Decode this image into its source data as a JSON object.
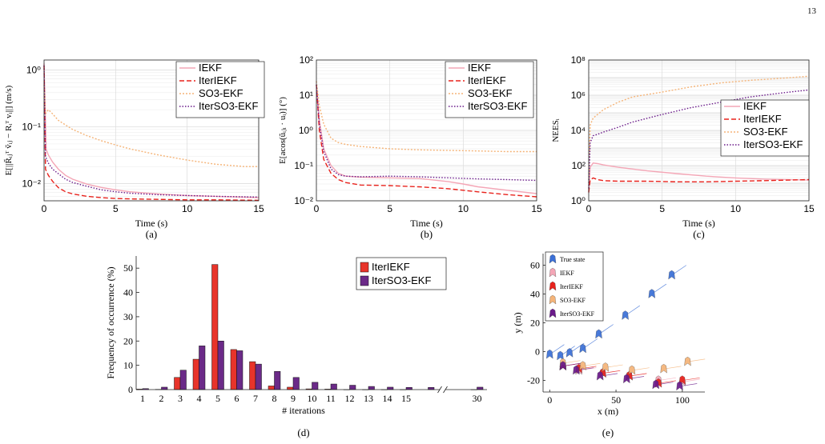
{
  "page_number": "13",
  "colors": {
    "iekf": "#f4a6b6",
    "iteriekf": "#e8221c",
    "so3ekf": "#f5b478",
    "iterso3ekf": "#6a1a8a",
    "true_state": "#3a6fd6",
    "bar_iteriekf": "#e8342a",
    "bar_iterso3ekf": "#6b2a88"
  },
  "chart_data": [
    {
      "id": "a",
      "caption": "(a)",
      "type": "line",
      "xlabel": "Time (s)",
      "ylabel": "E[||R̃ᵢⱼᵀ ṽᵢⱼ − Rᵢᵀ vᵢ||] (m/s)",
      "xlim": [
        0,
        15
      ],
      "ylim": [
        0.005,
        1.5
      ],
      "yscale": "log",
      "xticks": [
        "0",
        "5",
        "10",
        "15"
      ],
      "yticks": [
        {
          "v": 0.01,
          "label": "10⁻²"
        },
        {
          "v": 0.1,
          "label": "10⁻¹"
        },
        {
          "v": 1,
          "label": "10⁰"
        }
      ],
      "grid": true,
      "legend_position": "top-right",
      "series": [
        {
          "name": "IEKF",
          "color": "#f4a6b6",
          "dash": "",
          "x": [
            0,
            0.15,
            0.3,
            0.6,
            1,
            1.5,
            2,
            3,
            4,
            5,
            6,
            8,
            10,
            12,
            15
          ],
          "y": [
            1.3,
            0.04,
            0.032,
            0.024,
            0.018,
            0.014,
            0.012,
            0.0098,
            0.0086,
            0.0078,
            0.0072,
            0.0066,
            0.0062,
            0.006,
            0.0057
          ]
        },
        {
          "name": "IterIEKF",
          "color": "#e8221c",
          "dash": "6,3",
          "x": [
            0,
            0.1,
            0.3,
            0.6,
            1,
            1.5,
            2,
            3,
            4,
            5,
            6,
            8,
            10,
            12,
            15
          ],
          "y": [
            1.2,
            0.018,
            0.014,
            0.011,
            0.0085,
            0.0072,
            0.0066,
            0.006,
            0.0057,
            0.0055,
            0.0054,
            0.0053,
            0.0052,
            0.0052,
            0.0051
          ]
        },
        {
          "name": "SO3-EKF",
          "color": "#f5b478",
          "dash": "2,2",
          "x": [
            0,
            0.1,
            0.3,
            0.5,
            1,
            2,
            3,
            4,
            5,
            6,
            8,
            10,
            12,
            14,
            15
          ],
          "y": [
            0.55,
            0.17,
            0.2,
            0.18,
            0.13,
            0.09,
            0.07,
            0.057,
            0.048,
            0.041,
            0.032,
            0.026,
            0.022,
            0.02,
            0.02
          ]
        },
        {
          "name": "IterSO3-EKF",
          "color": "#6a1a8a",
          "dash": "1.5,2",
          "x": [
            0,
            0.1,
            0.3,
            0.6,
            1,
            1.5,
            2,
            3,
            4,
            5,
            6,
            8,
            10,
            12,
            15
          ],
          "y": [
            1.2,
            0.03,
            0.023,
            0.018,
            0.015,
            0.012,
            0.0105,
            0.009,
            0.0078,
            0.0072,
            0.0068,
            0.0064,
            0.0062,
            0.006,
            0.0058
          ]
        }
      ]
    },
    {
      "id": "b",
      "caption": "(b)",
      "type": "line",
      "xlabel": "Time (s)",
      "ylabel": "E[acos(ũᵢⱼᵢ · uᵢ)] (°)",
      "xlim": [
        0,
        15
      ],
      "ylim": [
        0.01,
        100
      ],
      "yscale": "log",
      "xticks": [
        "0",
        "5",
        "10",
        "15"
      ],
      "yticks": [
        {
          "v": 0.01,
          "label": "10⁻²"
        },
        {
          "v": 0.1,
          "label": "10⁻¹"
        },
        {
          "v": 1,
          "label": "10⁰"
        },
        {
          "v": 10,
          "label": "10¹"
        },
        {
          "v": 100,
          "label": "10²"
        }
      ],
      "grid": true,
      "legend_position": "top-right",
      "series": [
        {
          "name": "IEKF",
          "color": "#f4a6b6",
          "dash": "",
          "x": [
            0,
            0.2,
            0.5,
            1,
            1.5,
            2,
            3,
            5,
            7,
            9,
            10,
            11,
            13,
            15
          ],
          "y": [
            20,
            2,
            0.3,
            0.1,
            0.06,
            0.05,
            0.047,
            0.045,
            0.043,
            0.035,
            0.03,
            0.025,
            0.02,
            0.016
          ]
        },
        {
          "name": "IterIEKF",
          "color": "#e8221c",
          "dash": "6,3",
          "x": [
            0,
            0.2,
            0.5,
            1,
            1.5,
            2,
            3,
            5,
            7,
            9,
            11,
            13,
            15
          ],
          "y": [
            20,
            1,
            0.15,
            0.06,
            0.04,
            0.033,
            0.028,
            0.027,
            0.025,
            0.022,
            0.018,
            0.015,
            0.013
          ]
        },
        {
          "name": "SO3-EKF",
          "color": "#f5b478",
          "dash": "2,2",
          "x": [
            0,
            0.2,
            0.5,
            1,
            1.5,
            2,
            3,
            5,
            7,
            9,
            11,
            13,
            15
          ],
          "y": [
            25,
            5,
            1.5,
            0.6,
            0.45,
            0.4,
            0.35,
            0.3,
            0.28,
            0.27,
            0.26,
            0.25,
            0.25
          ]
        },
        {
          "name": "IterSO3-EKF",
          "color": "#6a1a8a",
          "dash": "1.5,2",
          "x": [
            0,
            0.2,
            0.5,
            1,
            1.5,
            2,
            3,
            5,
            7,
            9,
            11,
            13,
            15
          ],
          "y": [
            20,
            1.5,
            0.25,
            0.08,
            0.055,
            0.05,
            0.048,
            0.05,
            0.048,
            0.045,
            0.042,
            0.04,
            0.038
          ]
        }
      ]
    },
    {
      "id": "c",
      "caption": "(c)",
      "type": "line",
      "xlabel": "Time (s)",
      "ylabel": "NEESᵢ",
      "xlim": [
        0,
        15
      ],
      "ylim": [
        1,
        100000000
      ],
      "yscale": "log",
      "xticks": [
        "0",
        "5",
        "10",
        "15"
      ],
      "yticks": [
        {
          "v": 1,
          "label": "10⁰"
        },
        {
          "v": 100,
          "label": "10²"
        },
        {
          "v": 10000,
          "label": "10⁴"
        },
        {
          "v": 1000000,
          "label": "10⁶"
        },
        {
          "v": 100000000,
          "label": "10⁸"
        }
      ],
      "grid": true,
      "legend_position": "center-right",
      "series": [
        {
          "name": "IEKF",
          "color": "#f4a6b6",
          "dash": "",
          "x": [
            0,
            0.1,
            0.3,
            0.6,
            1,
            2,
            4,
            6,
            8,
            10,
            12,
            15
          ],
          "y": [
            3,
            80,
            140,
            130,
            110,
            80,
            50,
            35,
            25,
            20,
            17,
            15
          ]
        },
        {
          "name": "IterIEKF",
          "color": "#e8221c",
          "dash": "6,3",
          "x": [
            0,
            0.1,
            0.3,
            0.6,
            1,
            2,
            4,
            6,
            8,
            10,
            12,
            15
          ],
          "y": [
            3,
            15,
            20,
            16,
            14,
            13,
            13,
            12,
            12,
            13,
            14,
            16
          ]
        },
        {
          "name": "SO3-EKF",
          "color": "#f5b478",
          "dash": "2,2",
          "x": [
            0,
            0.1,
            0.3,
            0.6,
            1,
            2,
            3,
            5,
            7,
            9,
            11,
            13,
            15
          ],
          "y": [
            10,
            20000,
            50000,
            80000,
            150000,
            400000,
            800000,
            1500000,
            3000000,
            5000000,
            7000000,
            9000000,
            12000000
          ]
        },
        {
          "name": "IterSO3-EKF",
          "color": "#6a1a8a",
          "dash": "1.5,2",
          "x": [
            0,
            0.1,
            0.3,
            0.6,
            1,
            2,
            3,
            5,
            7,
            9,
            11,
            13,
            15
          ],
          "y": [
            5,
            2000,
            5000,
            6000,
            8000,
            15000,
            30000,
            80000,
            200000,
            400000,
            800000,
            1300000,
            2000000
          ]
        }
      ]
    },
    {
      "id": "d",
      "caption": "(d)",
      "type": "bar",
      "xlabel": "# iterations",
      "ylabel": "Frequency of occurrence (%)",
      "ylim": [
        0,
        55
      ],
      "yticks": [
        0,
        10,
        20,
        30,
        40,
        50
      ],
      "categories": [
        "1",
        "2",
        "3",
        "4",
        "5",
        "6",
        "7",
        "8",
        "9",
        "10",
        "11",
        "12",
        "13",
        "14",
        "15",
        "",
        "30"
      ],
      "grid": false,
      "legend_position": "top-right",
      "series": [
        {
          "name": "IterIEKF",
          "color": "#e8342a",
          "values": [
            0.2,
            0.1,
            5,
            12.5,
            51.5,
            16.5,
            11.5,
            1.5,
            1,
            0.3,
            0.2,
            0,
            0,
            0,
            0,
            0,
            0
          ]
        },
        {
          "name": "IterSO3-EKF",
          "color": "#6b2a88",
          "values": [
            0.4,
            1,
            8,
            18,
            20,
            16,
            10.5,
            7.5,
            5,
            3,
            2.3,
            1.8,
            1.3,
            1,
            0.9,
            0.9,
            1
          ]
        }
      ]
    },
    {
      "id": "e",
      "caption": "(e)",
      "type": "scatter",
      "xlabel": "x (m)",
      "ylabel": "y (m)",
      "xlim": [
        -5,
        117
      ],
      "ylim": [
        -28,
        68
      ],
      "xticks": [
        0,
        50,
        100
      ],
      "yticks": [
        -20,
        0,
        20,
        40,
        60
      ],
      "legend_position": "top-left",
      "series": [
        {
          "name": "True state",
          "color": "#3a6fd6",
          "x": [
            0,
            8,
            15,
            25,
            37,
            57,
            77,
            92
          ],
          "y": [
            -2,
            -3,
            -1,
            2,
            12,
            25,
            40,
            53
          ]
        },
        {
          "name": "IEKF",
          "color": "#f4a6b6",
          "x": [
            10,
            22,
            40,
            60,
            82,
            100
          ],
          "y": [
            -10,
            -13,
            -15,
            -17,
            -20,
            -21
          ]
        },
        {
          "name": "IterIEKF",
          "color": "#e8221c",
          "x": [
            10,
            22,
            40,
            60,
            82,
            100
          ],
          "y": [
            -10,
            -12,
            -15,
            -17,
            -22,
            -20
          ]
        },
        {
          "name": "SO3-EKF",
          "color": "#f5b478",
          "x": [
            10,
            25,
            42,
            62,
            86,
            104
          ],
          "y": [
            -8,
            -10,
            -11,
            -13,
            -12,
            -7
          ]
        },
        {
          "name": "IterSO3-EKF",
          "color": "#6a1a8a",
          "x": [
            10,
            20,
            38,
            58,
            80,
            98
          ],
          "y": [
            -10,
            -13,
            -17,
            -19,
            -23,
            -24
          ]
        }
      ]
    }
  ]
}
